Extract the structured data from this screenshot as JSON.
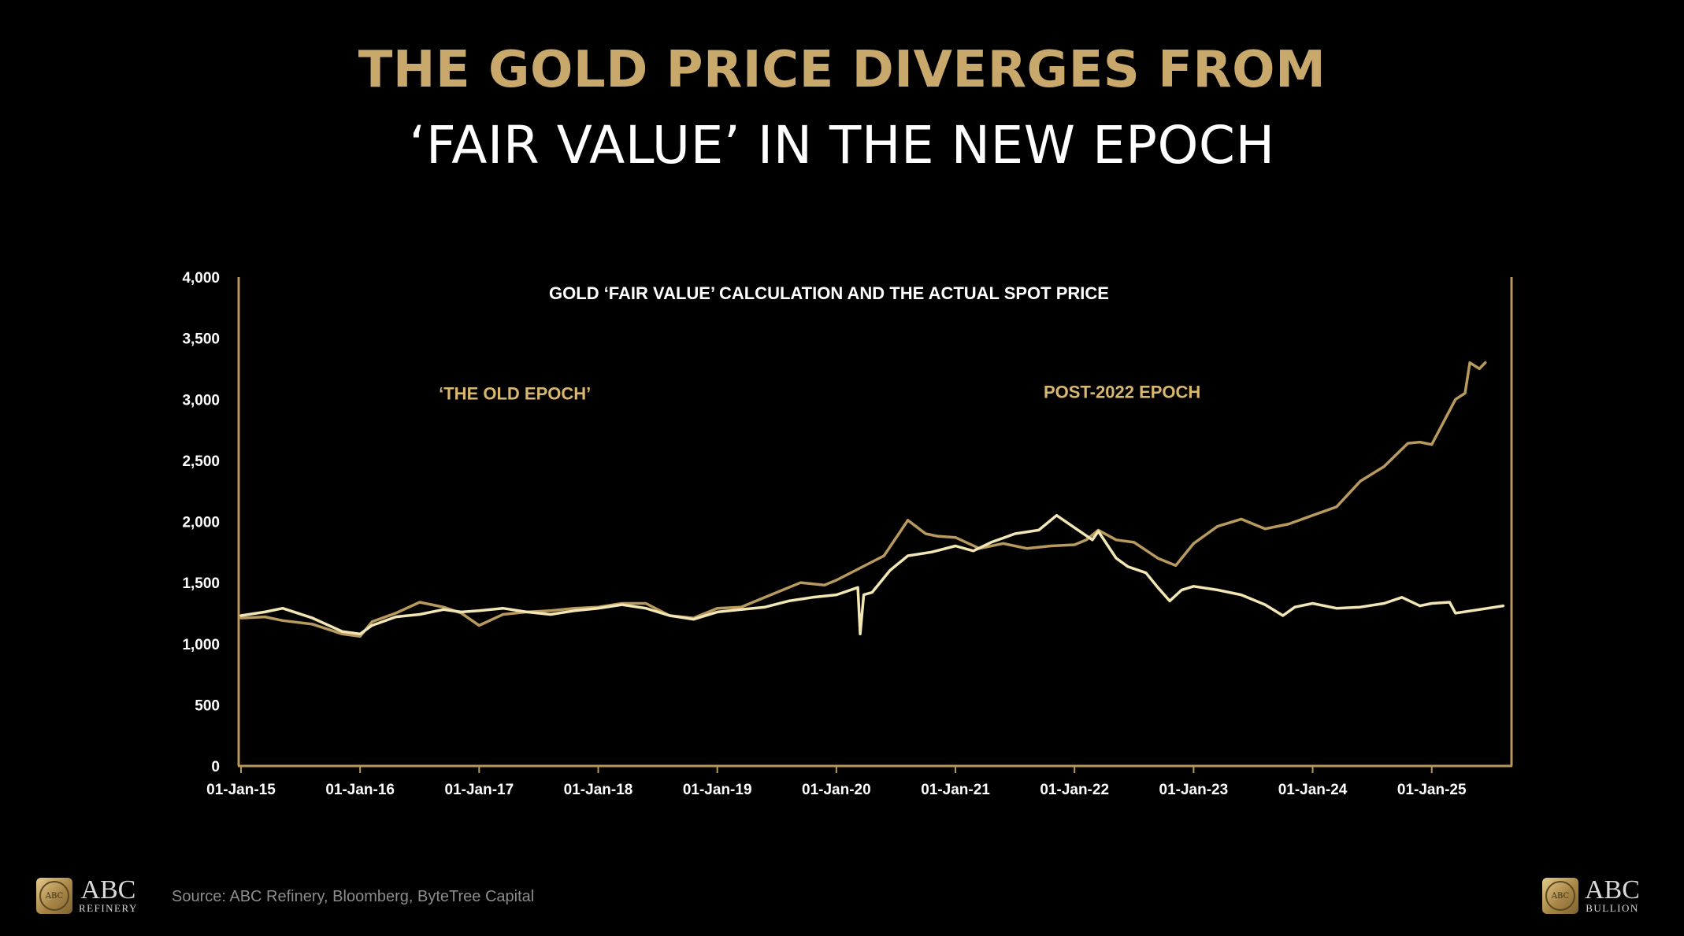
{
  "headline": {
    "line1": "THE GOLD PRICE DIVERGES FROM",
    "line2": "‘FAIR VALUE’ IN THE NEW EPOCH"
  },
  "colors": {
    "background": "#000000",
    "headline_gold": "#c9a96b",
    "fair_value_line": "#f2e6b5",
    "spot_price_line": "#b89a5e",
    "axis": "#b8985a",
    "annotation": "#d8b76e"
  },
  "chart_data": {
    "type": "line",
    "title": "GOLD ‘FAIR VALUE’ CALCULATION AND THE ACTUAL SPOT PRICE",
    "xlabel": "",
    "ylabel": "",
    "x_tick_labels": [
      "01-Jan-15",
      "01-Jan-16",
      "01-Jan-17",
      "01-Jan-18",
      "01-Jan-19",
      "01-Jan-20",
      "01-Jan-21",
      "01-Jan-22",
      "01-Jan-23",
      "01-Jan-24",
      "01-Jan-25"
    ],
    "y_tick_labels": [
      "0",
      "500",
      "1,000",
      "1,500",
      "2,000",
      "2,500",
      "3,000",
      "3,500",
      "4,000"
    ],
    "xlim": [
      2015.0,
      2025.67
    ],
    "ylim": [
      0,
      4000
    ],
    "grid": false,
    "legend": "none",
    "annotations": [
      {
        "text": "‘THE OLD EPOCH’",
        "x": 2017.3,
        "y": 3000
      },
      {
        "text": "POST-2022 EPOCH",
        "x": 2022.4,
        "y": 3010
      }
    ],
    "series": [
      {
        "color": "#f2e6b5",
        "x": [
          2015.0,
          2015.2,
          2015.35,
          2015.6,
          2015.85,
          2016.0,
          2016.1,
          2016.3,
          2016.5,
          2016.7,
          2016.85,
          2017.0,
          2017.2,
          2017.4,
          2017.6,
          2017.8,
          2018.0,
          2018.2,
          2018.4,
          2018.6,
          2018.8,
          2019.0,
          2019.2,
          2019.4,
          2019.6,
          2019.8,
          2020.0,
          2020.18,
          2020.2,
          2020.23,
          2020.3,
          2020.45,
          2020.6,
          2020.8,
          2021.0,
          2021.15,
          2021.3,
          2021.5,
          2021.7,
          2021.85,
          2022.0,
          2022.15,
          2022.2,
          2022.35,
          2022.45,
          2022.6,
          2022.7,
          2022.8,
          2022.9,
          2023.0,
          2023.2,
          2023.4,
          2023.6,
          2023.75,
          2023.85,
          2024.0,
          2024.2,
          2024.4,
          2024.6,
          2024.75,
          2024.9,
          2025.0,
          2025.15,
          2025.2,
          2025.4,
          2025.6
        ],
        "values": [
          1230,
          1260,
          1290,
          1210,
          1100,
          1080,
          1150,
          1220,
          1240,
          1280,
          1260,
          1270,
          1290,
          1260,
          1240,
          1270,
          1290,
          1320,
          1290,
          1230,
          1200,
          1260,
          1280,
          1300,
          1350,
          1380,
          1400,
          1460,
          1080,
          1400,
          1420,
          1600,
          1720,
          1750,
          1800,
          1760,
          1830,
          1900,
          1930,
          2050,
          1950,
          1850,
          1920,
          1700,
          1630,
          1580,
          1460,
          1350,
          1440,
          1470,
          1440,
          1400,
          1320,
          1230,
          1300,
          1330,
          1290,
          1300,
          1330,
          1380,
          1310,
          1330,
          1340,
          1250,
          1280,
          1310
        ]
      },
      {
        "color": "#b89a5e",
        "x": [
          2015.0,
          2015.2,
          2015.35,
          2015.6,
          2015.85,
          2016.0,
          2016.1,
          2016.3,
          2016.5,
          2016.7,
          2016.85,
          2017.0,
          2017.2,
          2017.4,
          2017.6,
          2017.8,
          2018.0,
          2018.2,
          2018.4,
          2018.6,
          2018.8,
          2019.0,
          2019.2,
          2019.45,
          2019.7,
          2019.9,
          2020.0,
          2020.2,
          2020.4,
          2020.6,
          2020.75,
          2020.85,
          2021.0,
          2021.2,
          2021.4,
          2021.6,
          2021.8,
          2022.0,
          2022.1,
          2022.2,
          2022.35,
          2022.5,
          2022.7,
          2022.85,
          2023.0,
          2023.2,
          2023.4,
          2023.6,
          2023.8,
          2024.0,
          2024.2,
          2024.4,
          2024.6,
          2024.8,
          2024.9,
          2025.0,
          2025.2,
          2025.28,
          2025.32,
          2025.4,
          2025.45
        ],
        "values": [
          1210,
          1220,
          1190,
          1160,
          1080,
          1060,
          1180,
          1250,
          1340,
          1300,
          1250,
          1150,
          1240,
          1260,
          1270,
          1290,
          1300,
          1330,
          1330,
          1230,
          1210,
          1290,
          1300,
          1400,
          1500,
          1480,
          1520,
          1620,
          1720,
          2010,
          1900,
          1880,
          1870,
          1780,
          1820,
          1780,
          1800,
          1810,
          1850,
          1930,
          1850,
          1830,
          1700,
          1640,
          1820,
          1960,
          2020,
          1940,
          1980,
          2050,
          2120,
          2330,
          2450,
          2640,
          2650,
          2630,
          3000,
          3050,
          3300,
          3250,
          3300
        ]
      }
    ]
  },
  "footer": {
    "source": "Source: ABC Refinery, Bloomberg, ByteTree Capital",
    "logo_left_main": "ABC",
    "logo_left_sub": "REFINERY",
    "logo_right_main": "ABC",
    "logo_right_sub": "BULLION",
    "logo_badge_text": "ABC"
  }
}
